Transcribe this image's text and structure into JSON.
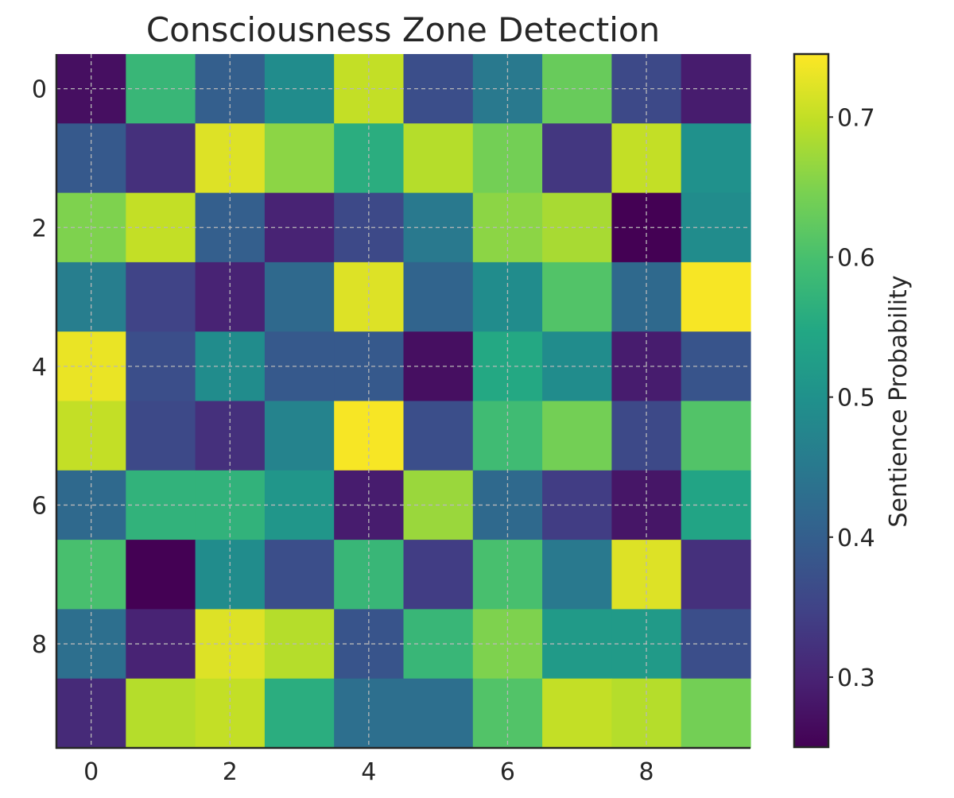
{
  "chart_data": {
    "type": "heatmap",
    "title": "Consciousness Zone Detection",
    "xlabel": "",
    "ylabel": "",
    "x_ticks": [
      0,
      2,
      4,
      6,
      8
    ],
    "y_ticks": [
      0,
      2,
      4,
      6,
      8
    ],
    "rows": 10,
    "cols": 10,
    "colormap": "viridis",
    "grid": true,
    "colorbar": {
      "label": "Sentience Probability",
      "vmin": 0.25,
      "vmax": 0.745,
      "ticks": [
        0.3,
        0.4,
        0.5,
        0.6,
        0.7
      ]
    },
    "values": [
      [
        0.27,
        0.58,
        0.4,
        0.49,
        0.7,
        0.37,
        0.45,
        0.63,
        0.36,
        0.29
      ],
      [
        0.39,
        0.32,
        0.72,
        0.66,
        0.56,
        0.69,
        0.64,
        0.33,
        0.7,
        0.5
      ],
      [
        0.65,
        0.7,
        0.4,
        0.3,
        0.36,
        0.45,
        0.66,
        0.68,
        0.25,
        0.49
      ],
      [
        0.46,
        0.35,
        0.3,
        0.42,
        0.72,
        0.41,
        0.49,
        0.61,
        0.42,
        0.74
      ],
      [
        0.73,
        0.37,
        0.49,
        0.39,
        0.39,
        0.27,
        0.55,
        0.49,
        0.29,
        0.38
      ],
      [
        0.7,
        0.36,
        0.32,
        0.47,
        0.74,
        0.37,
        0.59,
        0.64,
        0.36,
        0.61
      ],
      [
        0.42,
        0.57,
        0.57,
        0.51,
        0.29,
        0.67,
        0.42,
        0.34,
        0.28,
        0.54
      ],
      [
        0.6,
        0.25,
        0.49,
        0.37,
        0.58,
        0.34,
        0.6,
        0.45,
        0.72,
        0.32
      ],
      [
        0.43,
        0.3,
        0.72,
        0.69,
        0.38,
        0.58,
        0.65,
        0.52,
        0.52,
        0.37
      ],
      [
        0.31,
        0.69,
        0.7,
        0.56,
        0.43,
        0.43,
        0.61,
        0.7,
        0.69,
        0.64
      ]
    ]
  }
}
